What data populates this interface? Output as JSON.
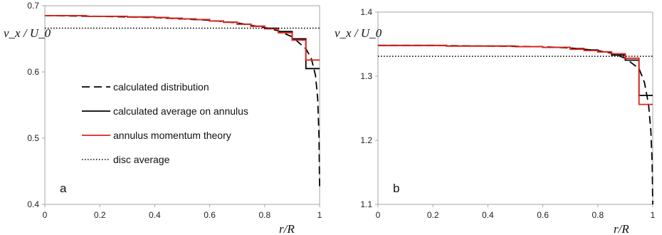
{
  "chart_data": [
    {
      "type": "line",
      "panel_label": "a",
      "xlim": [
        0,
        1
      ],
      "ylim": [
        0.4,
        0.7
      ],
      "x_ticks": [
        "0",
        "0.2",
        "0.4",
        "0.6",
        "0.8",
        "1"
      ],
      "y_ticks": [
        "0.4",
        "0.5",
        "0.6",
        "0.7"
      ],
      "xlabel": "r/R",
      "ylabel": "v_x / U_0",
      "legend_position": "center-left",
      "series": [
        {
          "name": "calculated distribution",
          "color": "#000000",
          "style": "dashed",
          "x": [
            0,
            0.2,
            0.4,
            0.6,
            0.7,
            0.8,
            0.85,
            0.9,
            0.95,
            0.97,
            0.985,
            0.993,
            0.998,
            1.0
          ],
          "y": [
            0.685,
            0.684,
            0.682,
            0.678,
            0.674,
            0.667,
            0.662,
            0.653,
            0.635,
            0.62,
            0.595,
            0.56,
            0.5,
            0.425
          ]
        },
        {
          "name": "calculated average on annulus",
          "color": "#000000",
          "style": "solid",
          "step": true,
          "x": [
            0,
            0.05,
            0.1,
            0.15,
            0.2,
            0.25,
            0.3,
            0.35,
            0.4,
            0.45,
            0.5,
            0.55,
            0.6,
            0.65,
            0.7,
            0.75,
            0.8,
            0.85,
            0.9,
            0.95,
            1.0
          ],
          "y": [
            0.685,
            0.685,
            0.685,
            0.684,
            0.684,
            0.684,
            0.683,
            0.683,
            0.682,
            0.681,
            0.68,
            0.679,
            0.677,
            0.675,
            0.672,
            0.669,
            0.666,
            0.661,
            0.65,
            0.605,
            0.605
          ]
        },
        {
          "name": "annulus momentum theory",
          "color": "#e2231a",
          "style": "solid",
          "step": true,
          "x": [
            0,
            0.05,
            0.1,
            0.15,
            0.2,
            0.25,
            0.3,
            0.35,
            0.4,
            0.45,
            0.5,
            0.55,
            0.6,
            0.65,
            0.7,
            0.75,
            0.8,
            0.85,
            0.9,
            0.95,
            1.0
          ],
          "y": [
            0.685,
            0.685,
            0.685,
            0.684,
            0.684,
            0.684,
            0.683,
            0.683,
            0.682,
            0.681,
            0.68,
            0.679,
            0.677,
            0.675,
            0.672,
            0.669,
            0.665,
            0.659,
            0.648,
            0.618,
            0.618
          ]
        },
        {
          "name": "disc average",
          "color": "#000000",
          "style": "dotted",
          "x": [
            0,
            1
          ],
          "y": [
            0.666,
            0.666
          ]
        }
      ]
    },
    {
      "type": "line",
      "panel_label": "b",
      "xlim": [
        0,
        1
      ],
      "ylim": [
        1.1,
        1.4
      ],
      "x_ticks": [
        "0",
        "0.2",
        "0.4",
        "0.6",
        "0.8",
        "1"
      ],
      "y_ticks": [
        "1.1",
        "1.2",
        "1.3",
        "1.4"
      ],
      "xlabel": "r/R",
      "ylabel": "v_x / U_0",
      "series": [
        {
          "name": "calculated distribution",
          "color": "#000000",
          "style": "dashed",
          "x": [
            0,
            0.2,
            0.4,
            0.6,
            0.7,
            0.8,
            0.85,
            0.9,
            0.95,
            0.97,
            0.985,
            0.993,
            0.998,
            1.0
          ],
          "y": [
            1.348,
            1.348,
            1.347,
            1.346,
            1.344,
            1.34,
            1.336,
            1.328,
            1.312,
            1.29,
            1.255,
            1.215,
            1.165,
            1.1
          ]
        },
        {
          "name": "calculated average on annulus",
          "color": "#000000",
          "style": "solid",
          "step": true,
          "x": [
            0,
            0.05,
            0.1,
            0.15,
            0.2,
            0.25,
            0.3,
            0.35,
            0.4,
            0.45,
            0.5,
            0.55,
            0.6,
            0.65,
            0.7,
            0.75,
            0.8,
            0.85,
            0.9,
            0.95,
            1.0
          ],
          "y": [
            1.348,
            1.348,
            1.348,
            1.348,
            1.348,
            1.347,
            1.347,
            1.347,
            1.347,
            1.347,
            1.346,
            1.346,
            1.345,
            1.345,
            1.343,
            1.341,
            1.338,
            1.333,
            1.325,
            1.27,
            1.27
          ]
        },
        {
          "name": "annulus momentum theory",
          "color": "#e2231a",
          "style": "solid",
          "step": true,
          "x": [
            0,
            0.05,
            0.1,
            0.15,
            0.2,
            0.25,
            0.3,
            0.35,
            0.4,
            0.45,
            0.5,
            0.55,
            0.6,
            0.65,
            0.7,
            0.75,
            0.8,
            0.85,
            0.9,
            0.95,
            1.0
          ],
          "y": [
            1.348,
            1.348,
            1.348,
            1.348,
            1.348,
            1.347,
            1.347,
            1.347,
            1.347,
            1.347,
            1.346,
            1.346,
            1.345,
            1.345,
            1.342,
            1.34,
            1.338,
            1.335,
            1.328,
            1.256,
            1.256
          ]
        },
        {
          "name": "disc average",
          "color": "#000000",
          "style": "dotted",
          "x": [
            0,
            1
          ],
          "y": [
            1.331,
            1.331
          ]
        }
      ]
    }
  ]
}
